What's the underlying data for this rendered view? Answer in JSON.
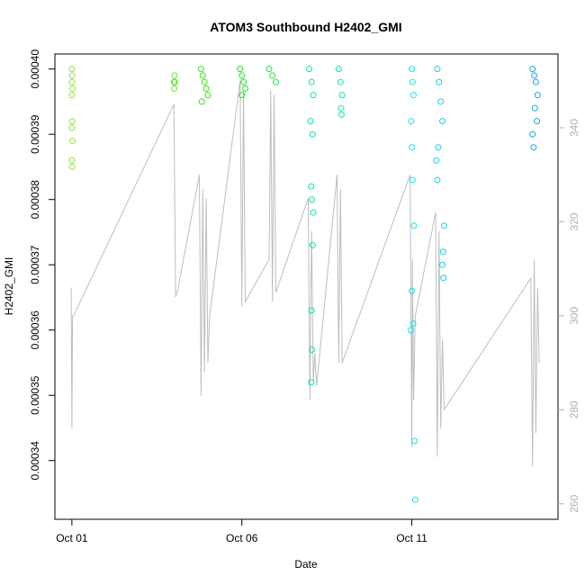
{
  "chart_data": {
    "type": "scatter",
    "title": "ATOM3 Southbound H2402_GMI",
    "xlabel": "Date",
    "ylabel": "H2402_GMI",
    "xlim": [
      0.5,
      15.3
    ],
    "xticks": [
      {
        "value": 1,
        "label": "Oct 01"
      },
      {
        "value": 6,
        "label": "Oct 06"
      },
      {
        "value": 11,
        "label": "Oct 11"
      }
    ],
    "ylim": [
      0.000331,
      0.0004023
    ],
    "yticks": [
      0.00034,
      0.00035,
      0.00036,
      0.00037,
      0.00038,
      0.00039,
      {
        "value": 0.0004,
        "label": "0.00040"
      }
    ],
    "y2lim": [
      256.7,
      355.7
    ],
    "y2ticks": [
      260,
      280,
      300,
      320,
      340
    ],
    "series": [
      {
        "color": "#bebebe",
        "type": "line",
        "axis": "y2",
        "x": [
          0.98,
          1.0,
          1.02,
          1.05,
          4.0,
          4.02,
          4.05,
          4.1,
          4.75,
          4.8,
          4.85,
          4.9,
          4.95,
          5.0,
          5.05,
          5.95,
          6.0,
          6.05,
          6.1,
          6.8,
          6.85,
          6.9,
          6.95,
          7.0,
          7.95,
          8.0,
          8.05,
          8.1,
          8.15,
          8.2,
          8.8,
          8.85,
          8.9,
          8.95,
          10.95,
          11.0,
          11.02,
          11.05,
          11.1,
          11.7,
          11.75,
          11.8,
          11.85,
          11.9,
          11.95,
          14.5,
          14.55,
          14.6,
          14.65,
          14.7,
          14.75
        ],
        "values": [
          306,
          276,
          300,
          300,
          345,
          328,
          304,
          305,
          330,
          283,
          327,
          288,
          325,
          290,
          300,
          350,
          302,
          348,
          303,
          312,
          348,
          303,
          347,
          305,
          325,
          282,
          318,
          286,
          292,
          285,
          330,
          290,
          327,
          290,
          330,
          272,
          312,
          282,
          300,
          322,
          270,
          318,
          276,
          295,
          280,
          308,
          268,
          312,
          275,
          306,
          290
        ]
      },
      {
        "color": "#8ee63a",
        "x": [
          1.0,
          1.01,
          1.0,
          1.02,
          1.0,
          1.01,
          1.0,
          1.02,
          1.0,
          1.01
        ],
        "values": [
          0.0004,
          0.000399,
          0.000398,
          0.000397,
          0.000396,
          0.000392,
          0.000391,
          0.000389,
          0.000386,
          0.000385
        ]
      },
      {
        "color": "#5ee627",
        "x": [
          4.02,
          4.0,
          4.03,
          4.01
        ],
        "values": [
          0.000399,
          0.000398,
          0.000398,
          0.000397
        ]
      },
      {
        "color": "#2fe60e",
        "x": [
          4.8,
          4.85,
          4.9,
          4.95,
          5.0,
          4.82
        ],
        "values": [
          0.0004,
          0.000399,
          0.000398,
          0.000397,
          0.000396,
          0.000395
        ]
      },
      {
        "color": "#0ee61a",
        "x": [
          5.95,
          6.0,
          6.05,
          6.1,
          6.0
        ],
        "values": [
          0.0004,
          0.000399,
          0.000398,
          0.000397,
          0.000396
        ]
      },
      {
        "color": "#0ee640",
        "x": [
          6.8,
          6.9,
          7.0
        ],
        "values": [
          0.0004,
          0.000399,
          0.000398
        ]
      },
      {
        "color": "#0ee684",
        "x": [
          7.98,
          8.05,
          8.1,
          8.02,
          8.08,
          8.04,
          8.06,
          8.1,
          8.08,
          8.05,
          8.06,
          8.04
        ],
        "values": [
          0.0004,
          0.000398,
          0.000396,
          0.000392,
          0.00039,
          0.000382,
          0.00038,
          0.000378,
          0.000373,
          0.000363,
          0.000357,
          0.000352
        ]
      },
      {
        "color": "#0ee6a6",
        "x": [
          8.85,
          8.9,
          8.95,
          8.92,
          8.93
        ],
        "values": [
          0.0004,
          0.000398,
          0.000396,
          0.000394,
          0.000393
        ]
      },
      {
        "color": "#0ee6e6",
        "x": [
          11.0,
          11.02,
          11.05,
          10.98,
          11.0,
          11.02,
          11.06,
          11.0,
          11.04,
          10.97,
          11.08,
          11.1
        ],
        "values": [
          0.0004,
          0.000398,
          0.000396,
          0.000392,
          0.000388,
          0.000383,
          0.000376,
          0.000366,
          0.000361,
          0.00036,
          0.000343,
          0.000334
        ]
      },
      {
        "color": "#0ed0e6",
        "x": [
          11.75,
          11.8,
          11.85,
          11.9,
          11.78,
          11.72,
          11.75,
          11.95,
          11.92,
          11.9,
          11.93
        ],
        "values": [
          0.0004,
          0.000398,
          0.000395,
          0.000392,
          0.000388,
          0.000386,
          0.000383,
          0.000376,
          0.000372,
          0.00037,
          0.000368
        ]
      },
      {
        "color": "#0ea6e6",
        "x": [
          14.55,
          14.6,
          14.65,
          14.7,
          14.62,
          14.68,
          14.55,
          14.58
        ],
        "values": [
          0.0004,
          0.000399,
          0.000398,
          0.000396,
          0.000394,
          0.000392,
          0.00039,
          0.000388
        ]
      }
    ]
  }
}
